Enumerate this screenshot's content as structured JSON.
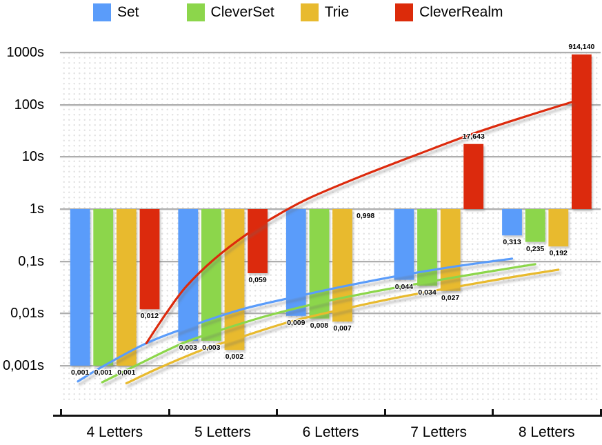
{
  "chart_data": {
    "type": "bar",
    "title": "",
    "y_scale": "log",
    "baseline_value": 1,
    "ylim": [
      0.001,
      1000
    ],
    "grid": "horizontal-with-dot-texture",
    "legend_position": "top",
    "decimal_separator": ",",
    "categories": [
      "4 Letters",
      "5 Letters",
      "6 Letters",
      "7 Letters",
      "8 Letters"
    ],
    "y_ticks": [
      {
        "label": "1000s",
        "value": 1000
      },
      {
        "label": "100s",
        "value": 100
      },
      {
        "label": "10s",
        "value": 10
      },
      {
        "label": "1s",
        "value": 1
      },
      {
        "label": "0,1s",
        "value": 0.1
      },
      {
        "label": "0,01s",
        "value": 0.01
      },
      {
        "label": "0,001s",
        "value": 0.001
      }
    ],
    "series": [
      {
        "name": "Set",
        "color": "#5A9CFA",
        "values": [
          0.001,
          0.003,
          0.009,
          0.044,
          0.313
        ],
        "labels": [
          "0,001",
          "0,003",
          "0,009",
          "0,044",
          "0,313"
        ],
        "trend": [
          [
            3.98,
            0.0005
          ],
          [
            4.2,
            0.00094
          ],
          [
            4.6,
            0.0026
          ],
          [
            5.0,
            0.0055
          ],
          [
            5.5,
            0.012
          ],
          [
            6.0,
            0.021
          ],
          [
            6.5,
            0.035
          ],
          [
            7.0,
            0.055
          ],
          [
            7.5,
            0.081
          ],
          [
            8.0,
            0.112
          ]
        ]
      },
      {
        "name": "CleverSet",
        "color": "#8CD64B",
        "values": [
          0.001,
          0.003,
          0.008,
          0.034,
          0.235
        ],
        "labels": [
          "0,001",
          "0,003",
          "0,008",
          "0,034",
          "0,235"
        ],
        "trend": [
          [
            3.99,
            0.00048
          ],
          [
            4.3,
            0.001
          ],
          [
            4.7,
            0.0025
          ],
          [
            5.0,
            0.0042
          ],
          [
            5.5,
            0.0088
          ],
          [
            6.0,
            0.016
          ],
          [
            6.5,
            0.026
          ],
          [
            7.0,
            0.04
          ],
          [
            7.5,
            0.06
          ],
          [
            8.0,
            0.088
          ]
        ]
      },
      {
        "name": "Trie",
        "color": "#E8BA2E",
        "values": [
          0.001,
          0.002,
          0.007,
          0.027,
          0.192
        ],
        "labels": [
          "0,001",
          "0,002",
          "0,007",
          "0,027",
          "0,192"
        ],
        "trend": [
          [
            4.0,
            0.00046
          ],
          [
            4.3,
            0.0009
          ],
          [
            4.7,
            0.002
          ],
          [
            5.0,
            0.0032
          ],
          [
            5.5,
            0.0068
          ],
          [
            6.0,
            0.012
          ],
          [
            6.5,
            0.02
          ],
          [
            7.0,
            0.031
          ],
          [
            7.5,
            0.047
          ],
          [
            8.0,
            0.069
          ]
        ]
      },
      {
        "name": "CleverRealm",
        "color": "#DC2B0A",
        "values": [
          0.012,
          0.059,
          0.998,
          17.643,
          914.14
        ],
        "labels": [
          "0,012",
          "0,059",
          "0,998",
          "17,643",
          "914,140"
        ],
        "trend": [
          [
            3.97,
            0.0027
          ],
          [
            4.15,
            0.0098
          ],
          [
            4.34,
            0.033
          ],
          [
            4.6,
            0.11
          ],
          [
            4.9,
            0.33
          ],
          [
            5.2,
            0.8
          ],
          [
            5.5,
            1.7
          ],
          [
            6.0,
            4.6
          ],
          [
            6.5,
            11.5
          ],
          [
            7.0,
            28
          ],
          [
            7.5,
            61
          ],
          [
            7.91,
            112
          ]
        ]
      }
    ]
  }
}
